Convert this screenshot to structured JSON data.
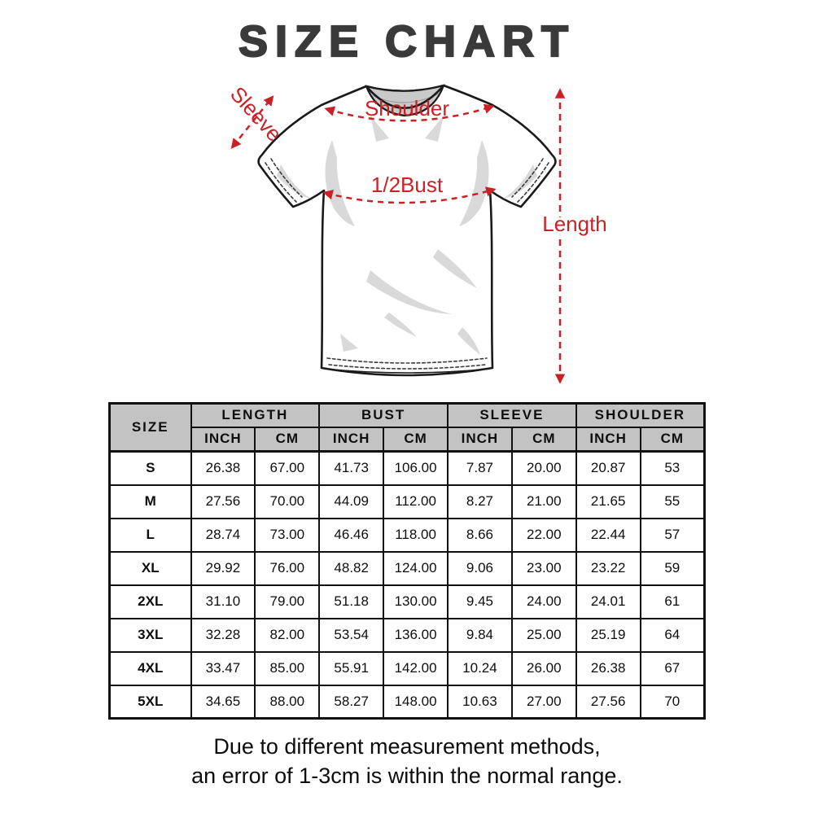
{
  "title": "SIZE CHART",
  "diagram": {
    "labels": {
      "sleeve": "Sleeve",
      "shoulder": "Shoulder",
      "half_bust": "1/2Bust",
      "length": "Length"
    },
    "annotation_color": "#cc2027",
    "outline_color": "#1a1a1a",
    "shading_color": "#d9d9d9"
  },
  "table": {
    "header_bg": "#c3c3c3",
    "border_color": "#111111",
    "size_header": "SIZE",
    "groups": [
      {
        "label": "LENGTH"
      },
      {
        "label": "BUST"
      },
      {
        "label": "SLEEVE"
      },
      {
        "label": "SHOULDER"
      }
    ],
    "unit_row": [
      "INCH",
      "CM",
      "INCH",
      "CM",
      "INCH",
      "CM",
      "INCH",
      "CM"
    ],
    "rows": [
      [
        "S",
        "26.38",
        "67.00",
        "41.73",
        "106.00",
        "7.87",
        "20.00",
        "20.87",
        "53"
      ],
      [
        "M",
        "27.56",
        "70.00",
        "44.09",
        "112.00",
        "8.27",
        "21.00",
        "21.65",
        "55"
      ],
      [
        "L",
        "28.74",
        "73.00",
        "46.46",
        "118.00",
        "8.66",
        "22.00",
        "22.44",
        "57"
      ],
      [
        "XL",
        "29.92",
        "76.00",
        "48.82",
        "124.00",
        "9.06",
        "23.00",
        "23.22",
        "59"
      ],
      [
        "2XL",
        "31.10",
        "79.00",
        "51.18",
        "130.00",
        "9.45",
        "24.00",
        "24.01",
        "61"
      ],
      [
        "3XL",
        "32.28",
        "82.00",
        "53.54",
        "136.00",
        "9.84",
        "25.00",
        "25.19",
        "64"
      ],
      [
        "4XL",
        "33.47",
        "85.00",
        "55.91",
        "142.00",
        "10.24",
        "26.00",
        "26.38",
        "67"
      ],
      [
        "5XL",
        "34.65",
        "88.00",
        "58.27",
        "148.00",
        "10.63",
        "27.00",
        "27.56",
        "70"
      ]
    ]
  },
  "footer": {
    "line1": "Due to different measurement methods,",
    "line2": "an error of 1-3cm is within the normal range."
  }
}
